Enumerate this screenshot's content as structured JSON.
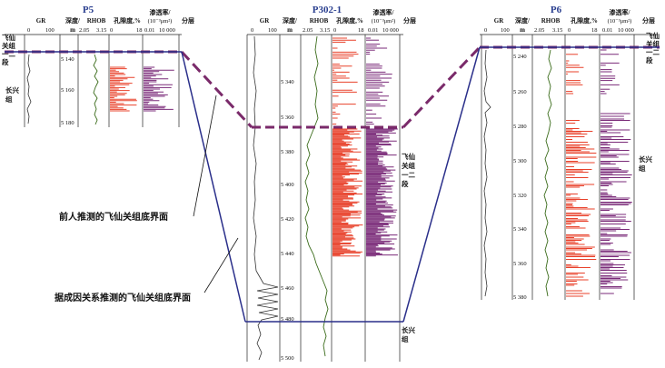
{
  "headers": {
    "gr": "GR",
    "depth": "深度/",
    "depth_unit": "m",
    "rhob": "RHOB",
    "por": "孔隙度,%",
    "perm": "渗透率/",
    "perm_unit": "(10⁻³μm²)",
    "layer": "分层",
    "gr_scale": [
      "0",
      "100"
    ],
    "rhob_scale": [
      "2.05",
      "3.15"
    ],
    "por_scale": [
      "0",
      "18"
    ],
    "perm_scale": [
      "0.01",
      "10 000"
    ]
  },
  "wells": {
    "p5": {
      "name": "P5",
      "depths": [
        "5 140",
        "5 160",
        "5 180"
      ],
      "formation_top": "飞仙关组一二段",
      "formation_bottom": "长兴组"
    },
    "p302": {
      "name": "P302-1",
      "depths": [
        "5 340",
        "5 360",
        "5 380",
        "5 400",
        "5 420",
        "5 440",
        "5 460",
        "5 480",
        "5 500"
      ],
      "formation_top": "飞仙关组一二段",
      "formation_bottom": "长兴组"
    },
    "p6": {
      "name": "P6",
      "depths": [
        "5 240",
        "5 260",
        "5 280",
        "5 300",
        "5 320",
        "5 340",
        "5 360",
        "5 380"
      ],
      "formation_top": "飞仙关组一二段",
      "formation_bottom": "长兴组"
    }
  },
  "annotations": {
    "previous_boundary": "前人推测的飞仙关组底界面",
    "genetic_boundary": "据成因关系推测的飞仙关组底界面"
  },
  "colors": {
    "well_name": "#2a3f8f",
    "porosity": "#e8402a",
    "permeability": "#7a2a78",
    "rhob": "#3a6b1a",
    "boundary_dashed": "#7a2a6a",
    "boundary_solid": "#2a2f8a"
  }
}
